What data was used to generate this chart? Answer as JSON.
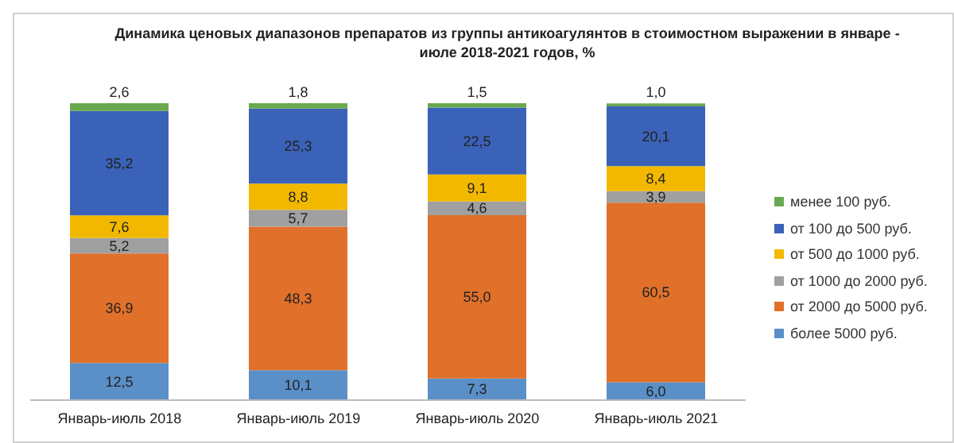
{
  "chart_data": {
    "type": "bar",
    "stacked": true,
    "title": "Динамика ценовых диапазонов препаратов из группы антикоагулянтов в стоимостном выражении в январе - июле 2018-2021 годов, %",
    "categories": [
      "Январь-июль 2018",
      "Январь-июль 2019",
      "Январь-июль 2020",
      "Январь-июль 2021"
    ],
    "legend": "right",
    "grid": false,
    "series": [
      {
        "name": "более 5000 руб.",
        "color": "#5b8fc8",
        "values": [
          12.5,
          10.1,
          7.3,
          6.0
        ],
        "value_labels": [
          "12,5",
          "10,1",
          "7,3",
          "6,0"
        ]
      },
      {
        "name": "от 2000 до 5000 руб.",
        "color": "#e0702a",
        "values": [
          36.9,
          48.3,
          55.0,
          60.5
        ],
        "value_labels": [
          "36,9",
          "48,3",
          "55,0",
          "60,5"
        ]
      },
      {
        "name": "от 1000 до 2000 руб.",
        "color": "#a0a0a0",
        "values": [
          5.2,
          5.7,
          4.6,
          3.9
        ],
        "value_labels": [
          "5,2",
          "5,7",
          "4,6",
          "3,9"
        ]
      },
      {
        "name": "от 500 до 1000 руб.",
        "color": "#f2b800",
        "values": [
          7.6,
          8.8,
          9.1,
          8.4
        ],
        "value_labels": [
          "7,6",
          "8,8",
          "9,1",
          "8,4"
        ]
      },
      {
        "name": "от 100 до 500 руб.",
        "color": "#3a62b8",
        "values": [
          35.2,
          25.3,
          22.5,
          20.1
        ],
        "value_labels": [
          "35,2",
          "25,3",
          "22,5",
          "20,1"
        ]
      },
      {
        "name": "менее 100 руб.",
        "color": "#6aa84f",
        "values": [
          2.6,
          1.8,
          1.5,
          1.0
        ],
        "value_labels": [
          "2,6",
          "1,8",
          "1,5",
          "1,0"
        ]
      }
    ]
  }
}
